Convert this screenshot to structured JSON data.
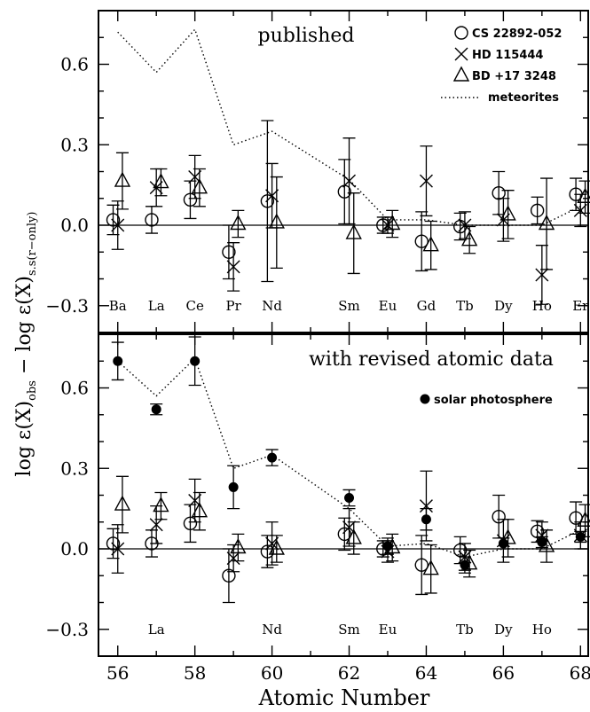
{
  "chart_data": {
    "type": "scatter",
    "xlabel": "Atomic Number",
    "ylabel": {
      "main_a": "log ε(X)",
      "sub_a": "obs",
      "mid": " − log ε(X)",
      "sub_b": "s.s(r−only)"
    },
    "xlim": [
      55.5,
      68.2
    ],
    "ylim": [
      -0.4,
      0.8
    ],
    "x_ticks": [
      56,
      58,
      60,
      62,
      64,
      66,
      68
    ],
    "x_tick_labels": [
      "56",
      "58",
      "60",
      "62",
      "64",
      "66",
      "68"
    ],
    "y_ticks": [
      -0.3,
      0.0,
      0.3,
      0.6
    ],
    "y_tick_labels": [
      "−0.3",
      "0.0",
      "0.3",
      "0.6"
    ],
    "legend": [
      {
        "marker": "circle",
        "label": "CS 22892-052"
      },
      {
        "marker": "cross",
        "label": "HD 115444"
      },
      {
        "marker": "triangle",
        "label": "BD +17 3248"
      },
      {
        "marker": "dotted",
        "label": "meteorites"
      }
    ],
    "panels": [
      {
        "title": "published",
        "legend_items": [
          0,
          1,
          2,
          3
        ],
        "extra_legend": "",
        "element_labels": [
          {
            "x": 56,
            "text": "Ba"
          },
          {
            "x": 57,
            "text": "La"
          },
          {
            "x": 58,
            "text": "Ce"
          },
          {
            "x": 59,
            "text": "Pr"
          },
          {
            "x": 60,
            "text": "Nd"
          },
          {
            "x": 62,
            "text": "Sm"
          },
          {
            "x": 63,
            "text": "Eu"
          },
          {
            "x": 64,
            "text": "Gd"
          },
          {
            "x": 65,
            "text": "Tb"
          },
          {
            "x": 66,
            "text": "Dy"
          },
          {
            "x": 67,
            "text": "Ho"
          },
          {
            "x": 68,
            "text": "Er"
          }
        ],
        "meteorites": {
          "x": [
            56,
            57,
            58,
            59,
            60,
            62,
            63,
            64,
            65,
            66,
            67,
            68
          ],
          "y": [
            0.72,
            0.57,
            0.73,
            0.3,
            0.35,
            0.17,
            0.02,
            0.02,
            0.0,
            0.0,
            0.0,
            0.07
          ]
        },
        "series": [
          {
            "name": "CS 22892-052",
            "marker": "circle",
            "x": [
              56,
              57,
              58,
              59,
              60,
              62,
              63,
              64,
              65,
              66,
              67,
              68
            ],
            "y": [
              0.02,
              0.02,
              0.095,
              -0.1,
              0.09,
              0.125,
              0.0,
              -0.06,
              -0.005,
              0.12,
              0.055,
              0.115
            ],
            "err": [
              0.055,
              0.05,
              0.07,
              0.1,
              0.3,
              0.12,
              0.03,
              0.11,
              0.05,
              0.08,
              0.05,
              0.06
            ]
          },
          {
            "name": "HD 115444",
            "marker": "cross",
            "x": [
              56,
              57,
              58,
              59,
              60,
              62,
              63,
              64,
              65,
              66,
              67,
              68
            ],
            "y": [
              0.0,
              0.14,
              0.18,
              -0.155,
              0.11,
              0.165,
              0.0,
              0.165,
              0.0,
              0.02,
              -0.185,
              0.055
            ],
            "err": [
              0.09,
              0.07,
              0.08,
              0.09,
              0.12,
              0.16,
              0.03,
              0.13,
              0.05,
              0.08,
              0.11,
              0.06
            ]
          },
          {
            "name": "BD +17 3248",
            "marker": "triangle",
            "x": [
              56,
              57,
              58,
              59,
              60,
              62,
              63,
              64,
              65,
              66,
              67,
              68
            ],
            "y": [
              0.165,
              0.16,
              0.14,
              0.005,
              0.01,
              -0.03,
              0.005,
              -0.075,
              -0.055,
              0.04,
              0.005,
              0.105
            ],
            "err": [
              0.105,
              0.05,
              0.07,
              0.05,
              0.17,
              0.15,
              0.05,
              0.09,
              0.05,
              0.09,
              0.17,
              0.06
            ]
          }
        ]
      },
      {
        "title": "with revised atomic data",
        "legend_items": [],
        "extra_legend": "solar photosphere",
        "element_labels": [
          {
            "x": 57,
            "text": "La"
          },
          {
            "x": 60,
            "text": "Nd"
          },
          {
            "x": 62,
            "text": "Sm"
          },
          {
            "x": 63,
            "text": "Eu"
          },
          {
            "x": 65,
            "text": "Tb"
          },
          {
            "x": 66,
            "text": "Dy"
          },
          {
            "x": 67,
            "text": "Ho"
          }
        ],
        "meteorites": {
          "x": [
            56,
            57,
            58,
            59,
            60,
            62,
            63,
            64,
            65,
            66,
            67,
            68
          ],
          "y": [
            0.7,
            0.57,
            0.71,
            0.3,
            0.35,
            0.15,
            0.01,
            0.02,
            -0.03,
            0.0,
            0.0,
            0.07
          ]
        },
        "series": [
          {
            "name": "solar photosphere",
            "marker": "filled-circle",
            "x": [
              56,
              57,
              58,
              59,
              60,
              62,
              63,
              64,
              65,
              66,
              67,
              68
            ],
            "y": [
              0.7,
              0.52,
              0.7,
              0.23,
              0.34,
              0.19,
              0.01,
              0.11,
              -0.06,
              0.02,
              0.025,
              0.045
            ],
            "err": [
              0.07,
              0.02,
              0.09,
              0.08,
              0.03,
              0.03,
              0.03,
              0.04,
              0.03,
              0.02,
              0.02,
              0.02
            ]
          },
          {
            "name": "CS 22892-052",
            "marker": "circle",
            "x": [
              56,
              57,
              58,
              59,
              60,
              62,
              63,
              64,
              65,
              66,
              67,
              68
            ],
            "y": [
              0.02,
              0.02,
              0.095,
              -0.1,
              -0.01,
              0.055,
              0.0,
              -0.06,
              -0.005,
              0.12,
              0.065,
              0.115
            ],
            "err": [
              0.055,
              0.05,
              0.07,
              0.1,
              0.06,
              0.06,
              0.03,
              0.11,
              0.05,
              0.08,
              0.04,
              0.06
            ]
          },
          {
            "name": "HD 115444",
            "marker": "cross",
            "x": [
              56,
              57,
              58,
              59,
              60,
              62,
              63,
              64,
              65,
              66,
              67,
              68
            ],
            "y": [
              0.0,
              0.09,
              0.18,
              -0.035,
              0.02,
              0.08,
              -0.01,
              0.16,
              -0.03,
              0.03,
              0.05,
              0.05
            ],
            "err": [
              0.09,
              0.07,
              0.08,
              0.05,
              0.08,
              0.07,
              0.04,
              0.13,
              0.05,
              0.08,
              0.05,
              0.05
            ]
          },
          {
            "name": "BD +17 3248",
            "marker": "triangle",
            "x": [
              56,
              57,
              58,
              59,
              60,
              62,
              63,
              64,
              65,
              66,
              67,
              68
            ],
            "y": [
              0.165,
              0.16,
              0.14,
              0.005,
              0.0,
              0.04,
              0.005,
              -0.075,
              -0.055,
              0.04,
              0.01,
              0.105
            ],
            "err": [
              0.105,
              0.05,
              0.07,
              0.05,
              0.05,
              0.06,
              0.05,
              0.09,
              0.05,
              0.07,
              0.06,
              0.06
            ]
          }
        ]
      }
    ]
  }
}
